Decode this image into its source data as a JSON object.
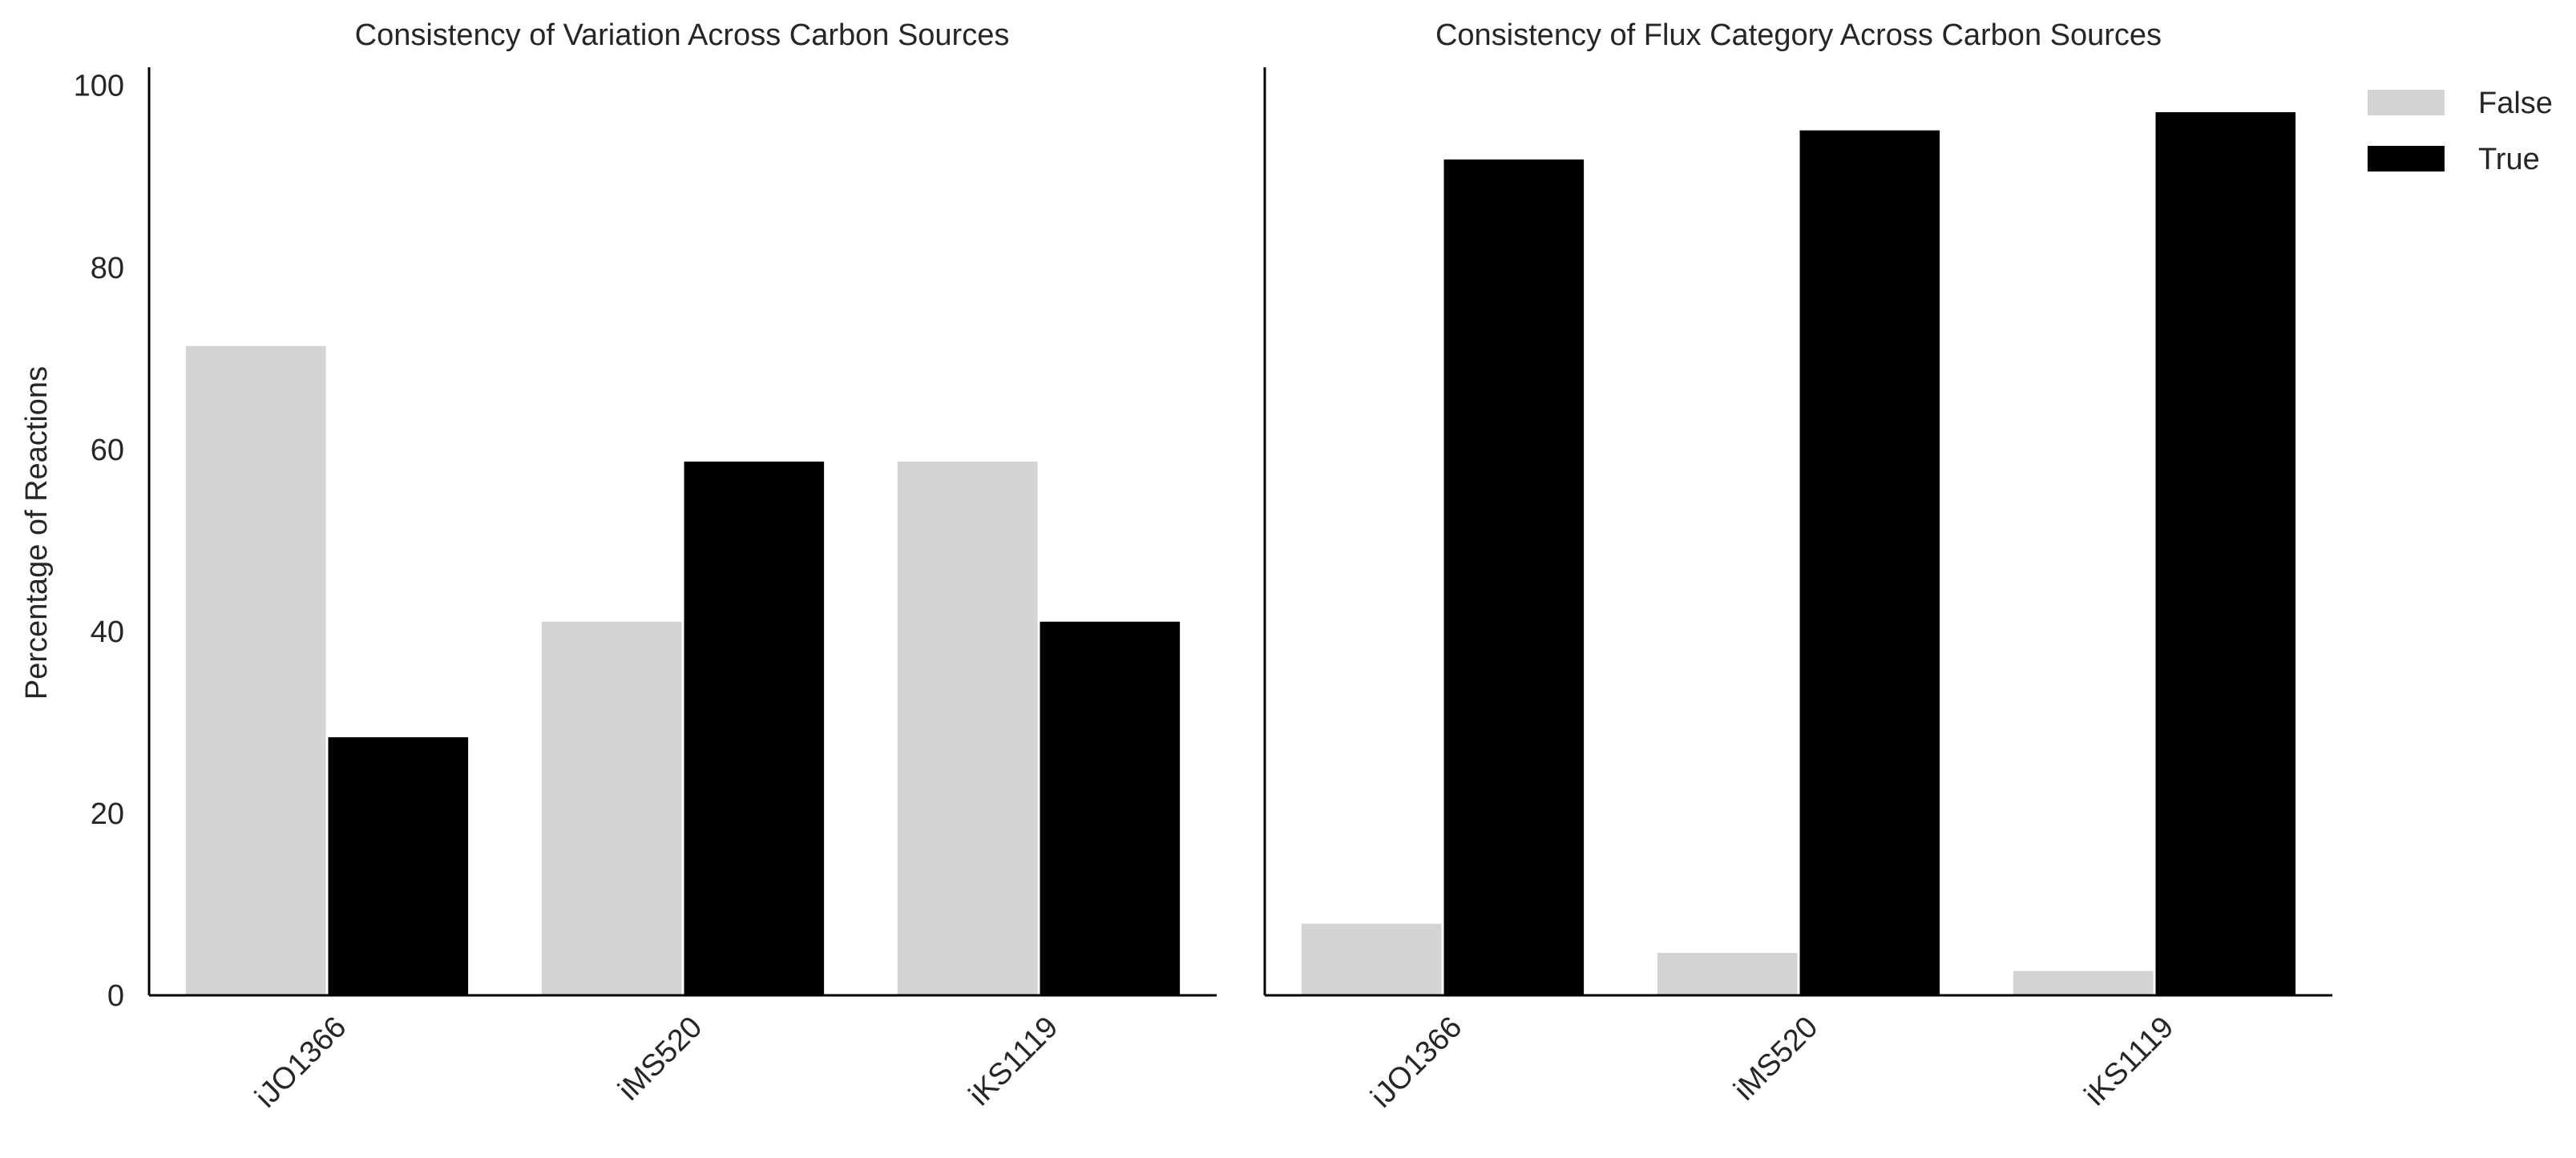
{
  "chart_data": [
    {
      "type": "bar",
      "title": "Consistency of Variation Across Carbon Sources",
      "ylabel": "Percentage of Reactions",
      "xlabel": "",
      "categories": [
        "iJO1366",
        "iMS520",
        "iKS1119"
      ],
      "series": [
        {
          "name": "False",
          "values": [
            71.5,
            41.2,
            58.8
          ],
          "color": "#d3d3d3"
        },
        {
          "name": "True",
          "values": [
            28.5,
            58.8,
            41.2
          ],
          "color": "#000000"
        }
      ],
      "ylim": [
        0,
        102
      ],
      "yticks": [
        "0",
        "20",
        "40",
        "60",
        "80",
        "100"
      ],
      "grid": false
    },
    {
      "type": "bar",
      "title": "Consistency of Flux Category Across Carbon Sources",
      "ylabel": "",
      "xlabel": "",
      "categories": [
        "iJO1366",
        "iMS520",
        "iKS1119"
      ],
      "series": [
        {
          "name": "False",
          "values": [
            8.0,
            4.8,
            2.8
          ],
          "color": "#d3d3d3"
        },
        {
          "name": "True",
          "values": [
            92.0,
            95.2,
            97.2
          ],
          "color": "#000000"
        }
      ],
      "ylim": [
        0,
        102
      ],
      "grid": false
    }
  ],
  "legend": {
    "placement": "top-right",
    "items": [
      {
        "label": "False",
        "color": "#d3d3d3"
      },
      {
        "label": "True",
        "color": "#000000"
      }
    ]
  }
}
